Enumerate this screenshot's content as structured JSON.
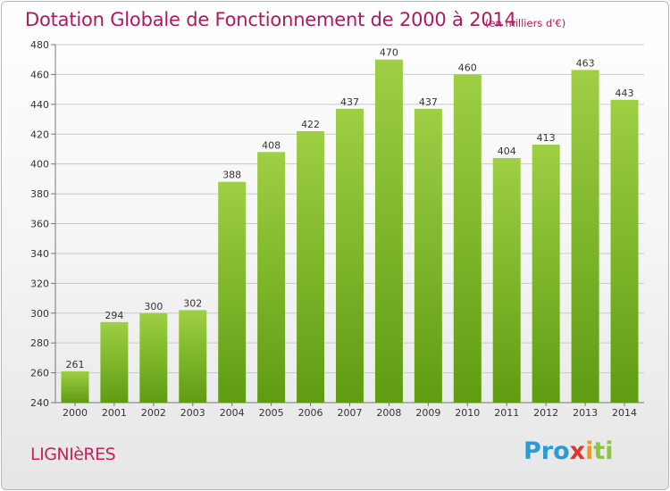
{
  "title": "Dotation Globale de Fonctionnement de 2000 à 2014",
  "unit_note": "(en milliers d'€)",
  "commune": "LIGNIèRES",
  "logo": {
    "part1": "Pro",
    "part2": "x",
    "part3": "i",
    "part4": "ti"
  },
  "colors": {
    "bar_top": "#9ecf45",
    "bar_bottom": "#5f9c12",
    "title": "#b0195e"
  },
  "chart_data": {
    "type": "bar",
    "title": "Dotation Globale de Fonctionnement de 2000 à 2014",
    "xlabel": "",
    "ylabel": "",
    "ylim": [
      240,
      480
    ],
    "yticks": [
      240,
      260,
      280,
      300,
      320,
      340,
      360,
      380,
      400,
      420,
      440,
      460,
      480
    ],
    "grid": true,
    "categories": [
      "2000",
      "2001",
      "2002",
      "2003",
      "2004",
      "2005",
      "2006",
      "2007",
      "2008",
      "2009",
      "2010",
      "2011",
      "2012",
      "2013",
      "2014"
    ],
    "values": [
      261,
      294,
      300,
      302,
      388,
      408,
      422,
      437,
      470,
      437,
      460,
      404,
      413,
      463,
      443
    ]
  }
}
